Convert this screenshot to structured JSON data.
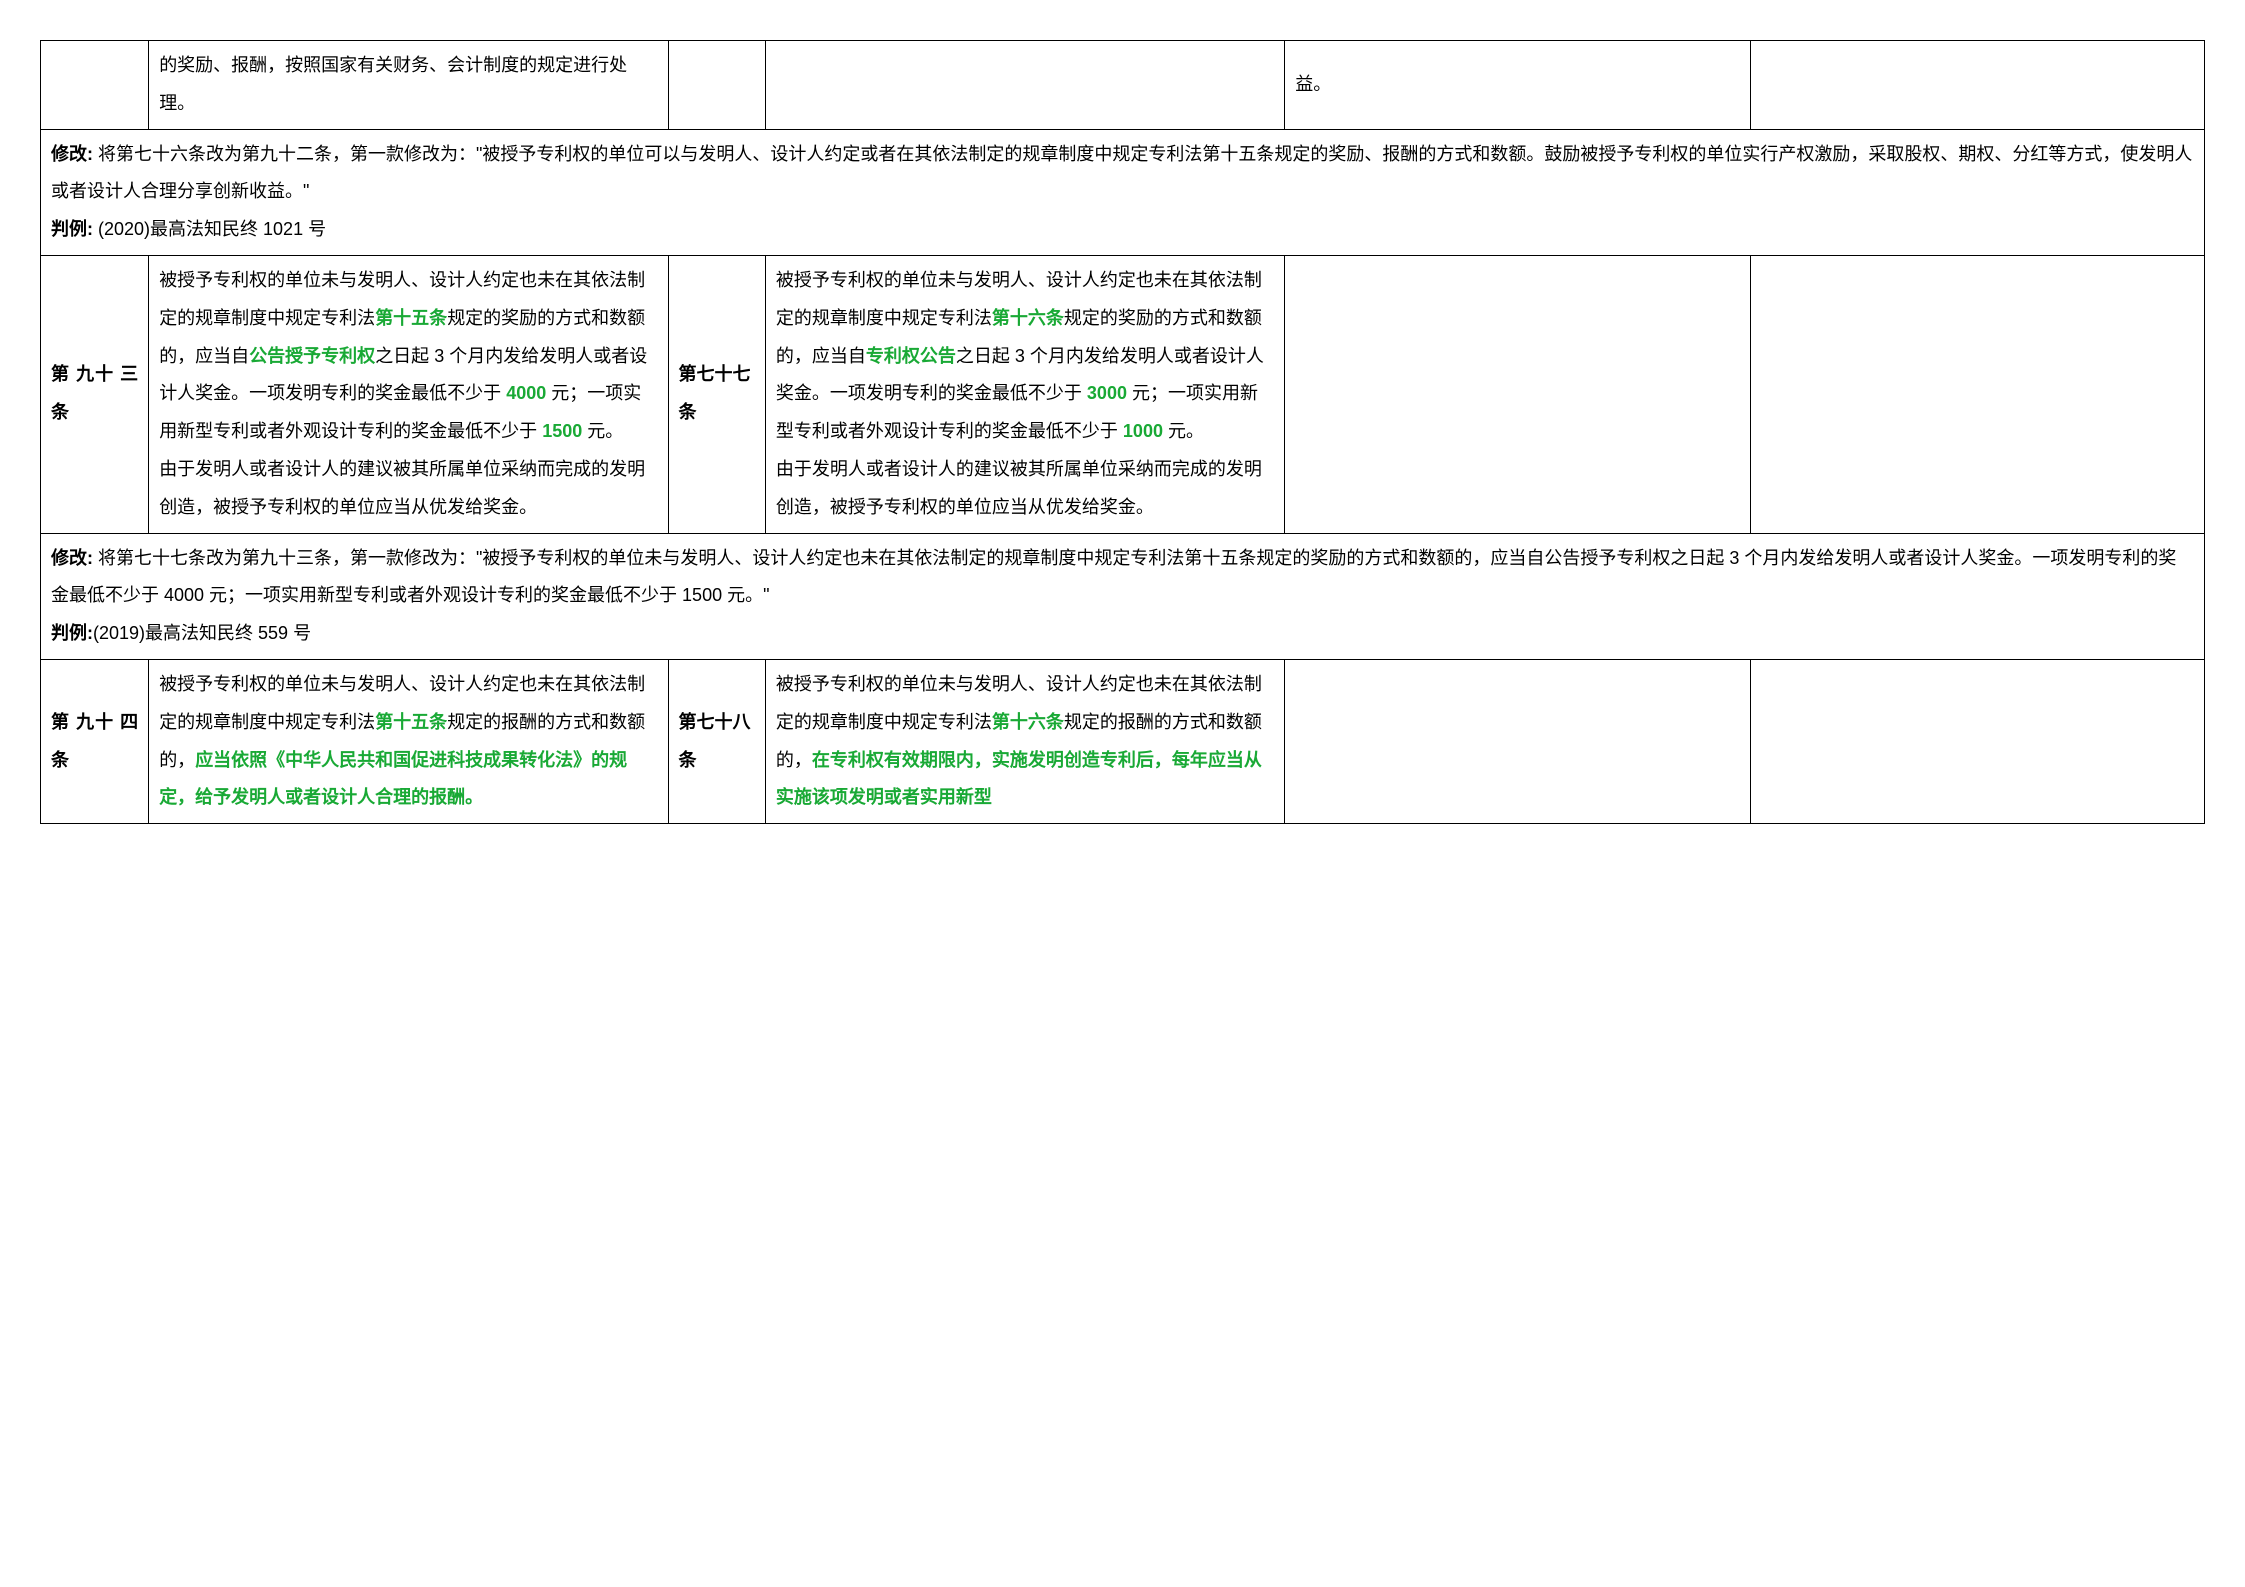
{
  "colors": {
    "green": "#19a935",
    "text": "#000000",
    "border": "#000000",
    "background": "#ffffff"
  },
  "typography": {
    "font_family": "Microsoft YaHei / SimSun",
    "font_size_pt": 13,
    "line_height": 2.1
  },
  "row0": {
    "cell2_text": "的奖励、报酬，按照国家有关财务、会计制度的规定进行处理。",
    "cell5_text": "益。"
  },
  "mod1": {
    "label_mod": "修改: ",
    "mod_text": "将第七十六条改为第九十二条，第一款修改为：\"被授予专利权的单位可以与发明人、设计人约定或者在其依法制定的规章制度中规定专利法第十五条规定的奖励、报酬的方式和数额。鼓励被授予专利权的单位实行产权激励，采取股权、期权、分红等方式，使发明人或者设计人合理分享创新收益。\"",
    "label_case": "判例: ",
    "case_text": "(2020)最高法知民终 1021 号"
  },
  "row93": {
    "art1_label": "第 九十 三条",
    "txt1_a": "被授予专利权的单位未与发明人、设计人约定也未在其依法制定的规章制度中规定专利法",
    "txt1_g1": "第十五条",
    "txt1_b": "规定的奖励的方式和数额的，应当自",
    "txt1_g2": "公告授予专利权",
    "txt1_c": "之日起 3 个月内发给发明人或者设计人奖金。一项发明专利的奖金最低不少于 ",
    "txt1_g3": "4000",
    "txt1_d": " 元；一项实用新型专利或者外观设计专利的奖金最低不少于 ",
    "txt1_g4": "1500",
    "txt1_e": " 元。",
    "txt1_p2": "由于发明人或者设计人的建议被其所属单位采纳而完成的发明创造，被授予专利权的单位应当从优发给奖金。",
    "art2_label": "第七十七条",
    "txt2_a": "被授予专利权的单位未与发明人、设计人约定也未在其依法制定的规章制度中规定专利法",
    "txt2_g1": "第十六条",
    "txt2_b": "规定的奖励的方式和数额的，应当自",
    "txt2_g2": "专利权公告",
    "txt2_c": "之日起 3 个月内发给发明人或者设计人奖金。一项发明专利的奖金最低不少于 ",
    "txt2_g3": "3000",
    "txt2_d": " 元；一项实用新型专利或者外观设计专利的奖金最低不少于 ",
    "txt2_g4": "1000",
    "txt2_e": " 元。",
    "txt2_p2": "由于发明人或者设计人的建议被其所属单位采纳而完成的发明创造，被授予专利权的单位应当从优发给奖金。"
  },
  "mod2": {
    "label_mod": "修改: ",
    "mod_text": "将第七十七条改为第九十三条，第一款修改为：\"被授予专利权的单位未与发明人、设计人约定也未在其依法制定的规章制度中规定专利法第十五条规定的奖励的方式和数额的，应当自公告授予专利权之日起 3 个月内发给发明人或者设计人奖金。一项发明专利的奖金最低不少于 4000 元；一项实用新型专利或者外观设计专利的奖金最低不少于 1500 元。\"",
    "label_case": "判例:",
    "case_text": "(2019)最高法知民终 559 号"
  },
  "row94": {
    "art1_label": "第 九十 四条",
    "txt1_a": "被授予专利权的单位未与发明人、设计人约定也未在其依法制定的规章制度中规定专利法",
    "txt1_g1": "第十五条",
    "txt1_b": "规定的报酬的方式和数额的，",
    "txt1_g2": "应当依照《中华人民共和国促进科技成果转化法》的规定，给予发明人或者设计人合理的报酬。",
    "art2_label": "第七十八条",
    "txt2_a": "被授予专利权的单位未与发明人、设计人约定也未在其依法制定的规章制度中规定专利法",
    "txt2_g1": "第十六条",
    "txt2_b": "规定的报酬的方式和数额的，",
    "txt2_g2": "在专利权有效期限内，实施发明创造专利后，每年应当从实施该项发明或者实用新型"
  }
}
